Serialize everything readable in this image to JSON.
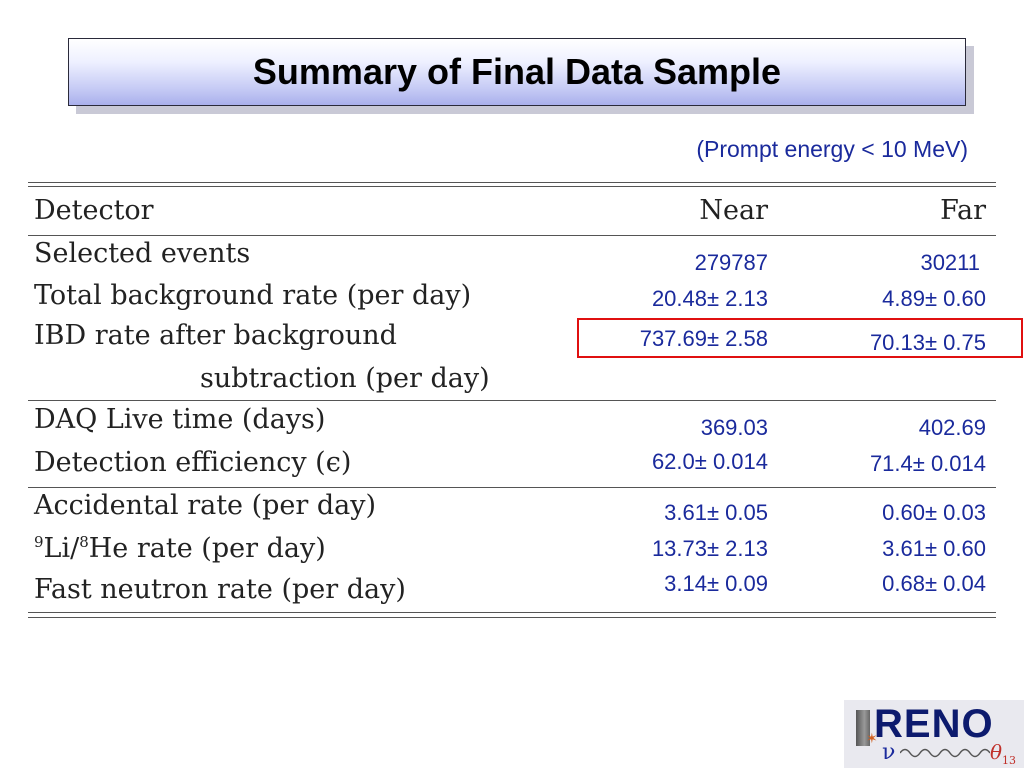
{
  "slide": {
    "title": "Summary of Final Data Sample",
    "subtitle": "(Prompt energy < 10 MeV)"
  },
  "table": {
    "headers": {
      "detector": "Detector",
      "near": "Near",
      "far": "Far"
    },
    "rows": [
      {
        "label": "Selected events",
        "near": "279787",
        "far": "30211"
      },
      {
        "label": "Total background rate (per day)",
        "near": "20.48± 2.13",
        "far": "4.89± 0.60"
      },
      {
        "label": "IBD rate after background",
        "label2": "subtraction (per day)",
        "near": "737.69± 2.58",
        "far": "70.13± 0.75"
      },
      {
        "label": "DAQ Live time (days)",
        "near": "369.03",
        "far": "402.69"
      },
      {
        "label": "Detection efficiency (ϵ)",
        "near": "62.0± 0.014",
        "far": "71.4± 0.014"
      },
      {
        "label": "Accidental rate (per day)",
        "near": "3.61± 0.05",
        "far": "0.60± 0.03"
      },
      {
        "label_sup1": "9",
        "label_a": "Li/",
        "label_sup2": "8",
        "label_b": "He rate (per day)",
        "near": "13.73± 2.13",
        "far": "3.61± 0.60"
      },
      {
        "label": "Fast neutron rate (per day)",
        "near": "3.14± 0.09",
        "far": "0.68± 0.04"
      }
    ]
  },
  "logo": {
    "text": "RENO",
    "nu": "ν",
    "theta": "θ",
    "theta_sub": "13"
  },
  "colors": {
    "value_text": "#1a2a9c",
    "highlight_border": "#e01010",
    "title_band": "#aab0ec"
  }
}
